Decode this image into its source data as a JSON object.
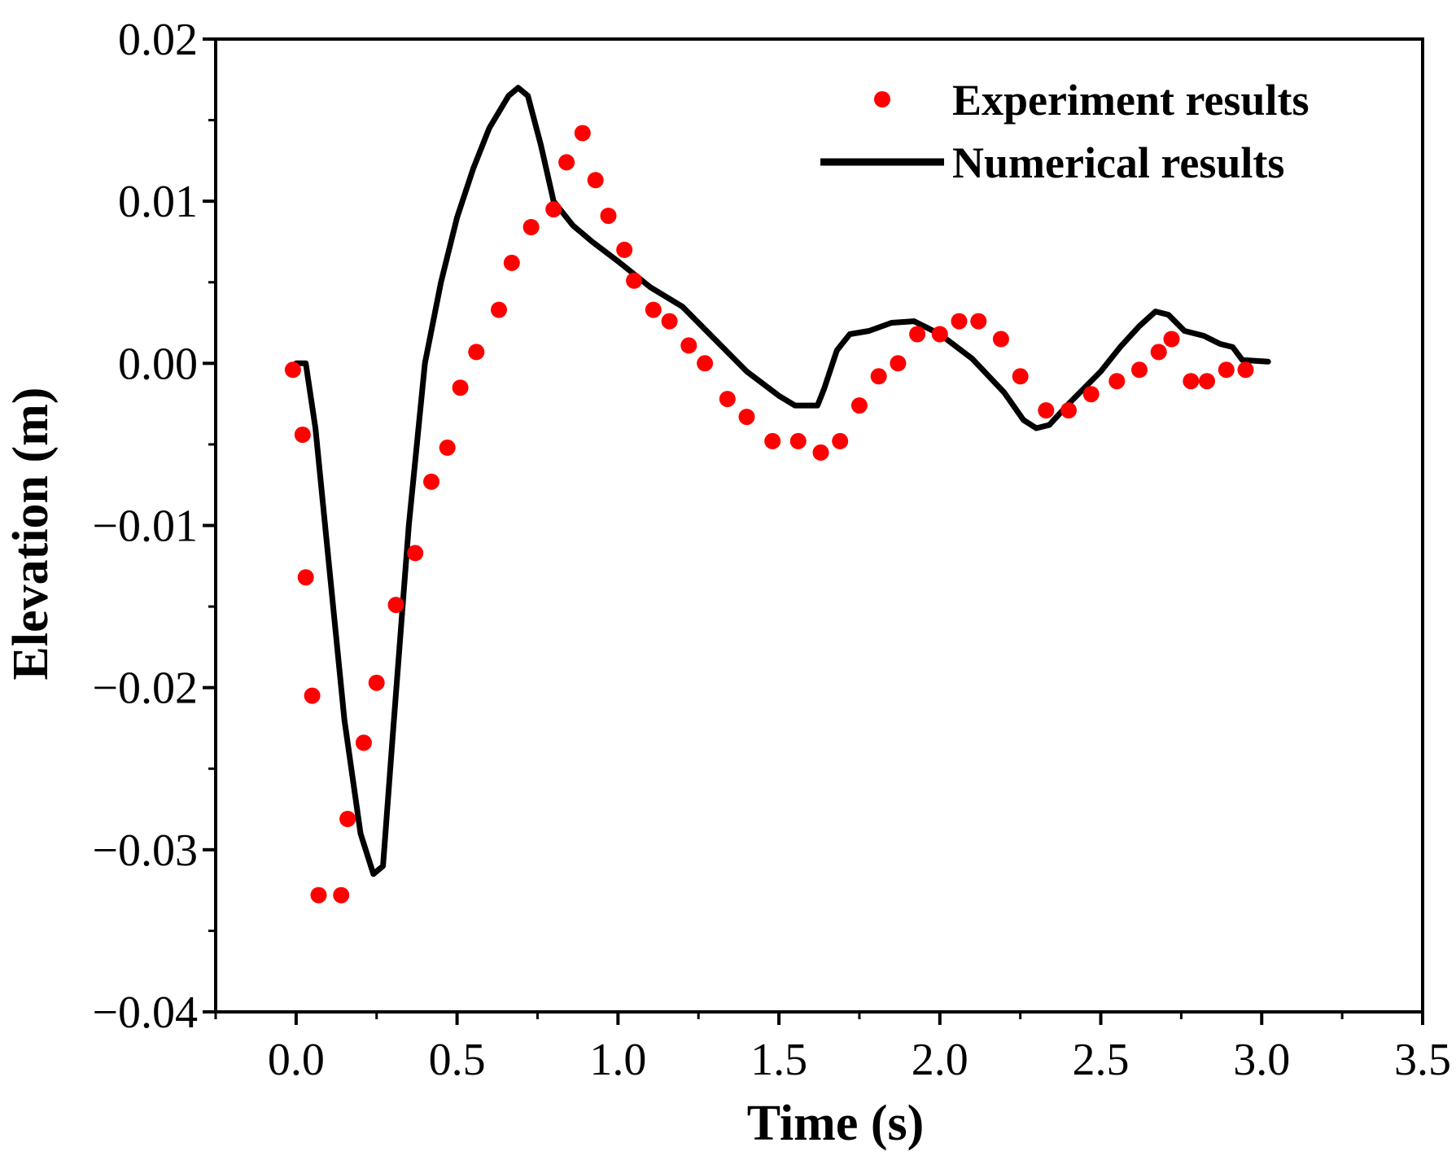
{
  "chart_data": {
    "type": "scatter+line",
    "xlabel": "Time (s)",
    "ylabel": "Elevation (m)",
    "xlim": [
      -0.25,
      3.5
    ],
    "ylim": [
      -0.04,
      0.02
    ],
    "xticks": [
      0.0,
      0.5,
      1.0,
      1.5,
      2.0,
      2.5,
      3.0,
      3.5
    ],
    "xtick_labels": [
      "0.0",
      "0.5",
      "1.0",
      "1.5",
      "2.0",
      "2.5",
      "3.0",
      "3.5"
    ],
    "yticks": [
      -0.04,
      -0.03,
      -0.02,
      -0.01,
      0.0,
      0.01,
      0.02
    ],
    "ytick_labels": [
      "−0.04",
      "−0.03",
      "−0.02",
      "−0.01",
      "0.00",
      "0.01",
      "0.02"
    ],
    "grid": false,
    "legend_position": "top-right",
    "series": [
      {
        "name": "Experiment results",
        "style": "markers",
        "color": "#ff0000",
        "x": [
          -0.01,
          0.02,
          0.03,
          0.05,
          0.07,
          0.14,
          0.16,
          0.21,
          0.25,
          0.31,
          0.37,
          0.42,
          0.47,
          0.51,
          0.56,
          0.63,
          0.67,
          0.73,
          0.8,
          0.84,
          0.89,
          0.93,
          0.97,
          1.02,
          1.05,
          1.11,
          1.16,
          1.22,
          1.27,
          1.34,
          1.4,
          1.48,
          1.56,
          1.63,
          1.69,
          1.75,
          1.81,
          1.87,
          1.93,
          2.0,
          2.06,
          2.12,
          2.19,
          2.25,
          2.33,
          2.4,
          2.47,
          2.55,
          2.62,
          2.68,
          2.72,
          2.78,
          2.83,
          2.89,
          2.95
        ],
        "y": [
          -0.0004,
          -0.0044,
          -0.0132,
          -0.0205,
          -0.0328,
          -0.0328,
          -0.0281,
          -0.0234,
          -0.0197,
          -0.0149,
          -0.0117,
          -0.0073,
          -0.0052,
          -0.0015,
          0.0007,
          0.0033,
          0.0062,
          0.0084,
          0.0095,
          0.0124,
          0.0142,
          0.0113,
          0.0091,
          0.007,
          0.0051,
          0.0033,
          0.0026,
          0.0011,
          0.0,
          -0.0022,
          -0.0033,
          -0.0048,
          -0.0048,
          -0.0055,
          -0.0048,
          -0.0026,
          -0.0008,
          0.0,
          0.0018,
          0.0018,
          0.0026,
          0.0026,
          0.0015,
          -0.0008,
          -0.0029,
          -0.0029,
          -0.0019,
          -0.0011,
          -0.0004,
          0.0007,
          0.0015,
          -0.0011,
          -0.0011,
          -0.0004,
          -0.0004
        ]
      },
      {
        "name": "Numerical results",
        "style": "line",
        "color": "#000000",
        "x": [
          0.0,
          0.03,
          0.06,
          0.1,
          0.15,
          0.2,
          0.24,
          0.27,
          0.3,
          0.35,
          0.4,
          0.45,
          0.5,
          0.55,
          0.6,
          0.66,
          0.69,
          0.72,
          0.76,
          0.8,
          0.86,
          0.92,
          1.0,
          1.1,
          1.2,
          1.3,
          1.4,
          1.5,
          1.55,
          1.58,
          1.62,
          1.64,
          1.68,
          1.72,
          1.78,
          1.85,
          1.92,
          2.0,
          2.1,
          2.2,
          2.26,
          2.3,
          2.34,
          2.4,
          2.5,
          2.56,
          2.62,
          2.67,
          2.71,
          2.76,
          2.82,
          2.87,
          2.91,
          2.94,
          3.02
        ],
        "y": [
          0.0,
          0.0,
          -0.004,
          -0.012,
          -0.022,
          -0.029,
          -0.0315,
          -0.031,
          -0.023,
          -0.01,
          0.0,
          0.005,
          0.009,
          0.012,
          0.0145,
          0.0165,
          0.017,
          0.0165,
          0.0135,
          0.01,
          0.0085,
          0.0075,
          0.0063,
          0.0047,
          0.0035,
          0.0015,
          -0.0005,
          -0.002,
          -0.0026,
          -0.0026,
          -0.0026,
          -0.0016,
          0.0008,
          0.0018,
          0.002,
          0.0025,
          0.0026,
          0.0018,
          0.0003,
          -0.0018,
          -0.0035,
          -0.004,
          -0.0038,
          -0.0025,
          -0.0005,
          0.001,
          0.0023,
          0.0032,
          0.003,
          0.002,
          0.0017,
          0.0012,
          0.001,
          0.0002,
          0.0001
        ]
      }
    ]
  }
}
